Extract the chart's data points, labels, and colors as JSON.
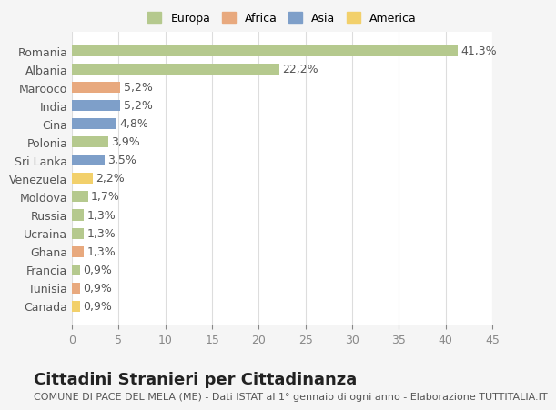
{
  "labels": [
    "Romania",
    "Albania",
    "Marooco",
    "India",
    "Cina",
    "Polonia",
    "Sri Lanka",
    "Venezuela",
    "Moldova",
    "Russia",
    "Ucraina",
    "Ghana",
    "Francia",
    "Tunisia",
    "Canada"
  ],
  "values": [
    41.3,
    22.2,
    5.2,
    5.2,
    4.8,
    3.9,
    3.5,
    2.2,
    1.7,
    1.3,
    1.3,
    1.3,
    0.9,
    0.9,
    0.9
  ],
  "value_labels": [
    "41,3%",
    "22,2%",
    "5,2%",
    "5,2%",
    "4,8%",
    "3,9%",
    "3,5%",
    "2,2%",
    "1,7%",
    "1,3%",
    "1,3%",
    "1,3%",
    "0,9%",
    "0,9%",
    "0,9%"
  ],
  "continents": [
    "Europa",
    "Europa",
    "Africa",
    "Asia",
    "Asia",
    "Europa",
    "Asia",
    "America",
    "Europa",
    "Europa",
    "Europa",
    "Africa",
    "Europa",
    "Africa",
    "America"
  ],
  "continent_colors": {
    "Europa": "#b5c98e",
    "Africa": "#e8a97e",
    "Asia": "#7e9fc9",
    "America": "#f2d06b"
  },
  "legend_order": [
    "Europa",
    "Africa",
    "Asia",
    "America"
  ],
  "xlim": [
    0,
    45
  ],
  "xticks": [
    0,
    5,
    10,
    15,
    20,
    25,
    30,
    35,
    40,
    45
  ],
  "background_color": "#f5f5f5",
  "plot_bg_color": "#ffffff",
  "grid_color": "#dddddd",
  "title": "Cittadini Stranieri per Cittadinanza",
  "subtitle": "COMUNE DI PACE DEL MELA (ME) - Dati ISTAT al 1° gennaio di ogni anno - Elaborazione TUTTITALIA.IT",
  "bar_height": 0.6,
  "label_fontsize": 9,
  "value_fontsize": 9,
  "title_fontsize": 13,
  "subtitle_fontsize": 8
}
